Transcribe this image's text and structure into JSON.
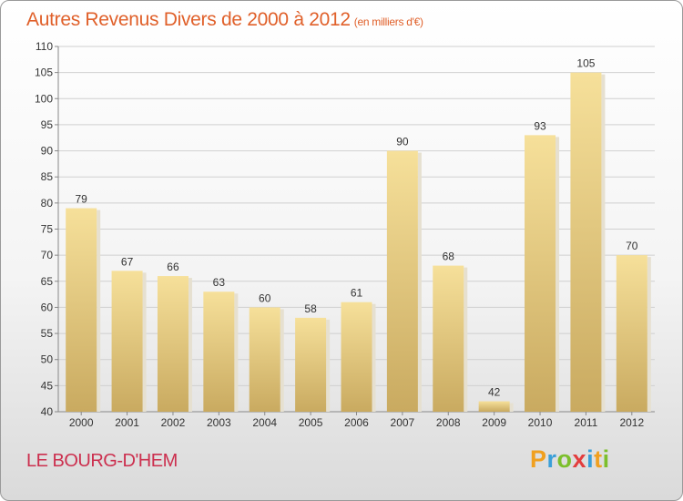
{
  "header": {
    "title": "Autres Revenus Divers de 2000 à 2012",
    "subtitle": "(en milliers d'€)"
  },
  "footer": {
    "location": "LE BOURG-D'HEM",
    "brand": "Proxiti"
  },
  "colors": {
    "title": "#e0602a",
    "location": "#cc2f4e",
    "bar_light": "#f6e09a",
    "bar_dark": "#c9aa60"
  },
  "chart_data": {
    "type": "bar",
    "categories": [
      "2000",
      "2001",
      "2002",
      "2003",
      "2004",
      "2005",
      "2006",
      "2007",
      "2008",
      "2009",
      "2010",
      "2011",
      "2012"
    ],
    "values": [
      79,
      67,
      66,
      63,
      60,
      58,
      61,
      90,
      68,
      42,
      93,
      105,
      70
    ],
    "ylim": [
      40,
      110
    ],
    "yticks": [
      40,
      45,
      50,
      55,
      60,
      65,
      70,
      75,
      80,
      85,
      90,
      95,
      100,
      105,
      110
    ],
    "grid": true,
    "data_labels": true,
    "legend": "none"
  }
}
